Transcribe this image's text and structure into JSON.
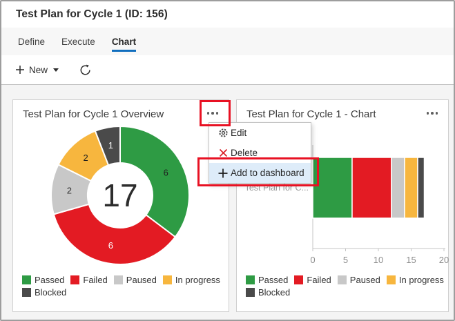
{
  "window": {
    "title": "Test Plan for Cycle 1 (ID: 156)"
  },
  "tabs": [
    {
      "label": "Define",
      "active": false
    },
    {
      "label": "Execute",
      "active": false
    },
    {
      "label": "Chart",
      "active": true
    }
  ],
  "toolbar": {
    "new_label": "New"
  },
  "menu": {
    "items": [
      {
        "label": "Edit",
        "icon": "gear-icon",
        "highlighted": false
      },
      {
        "label": "Delete",
        "icon": "delete-x-icon",
        "highlighted": false
      },
      {
        "label": "Add to dashboard",
        "icon": "plus-icon",
        "highlighted": true
      }
    ]
  },
  "colors": {
    "accent_blue": "#106ebe",
    "annotation_red": "#e81123",
    "menu_highlight": "#deecf9"
  },
  "chart_data": [
    {
      "type": "donut",
      "title": "Test Plan for Cycle 1 Overview",
      "categories": [
        "Passed",
        "Failed",
        "Paused",
        "In progress",
        "Blocked"
      ],
      "values": [
        6,
        6,
        2,
        2,
        1
      ],
      "colors": [
        "#2E9B44",
        "#E31B23",
        "#C8C8C8",
        "#F7B63E",
        "#4A4A4A"
      ],
      "label_colors": [
        "#1e1e1e",
        "#ffffff",
        "#333333",
        "#1e1e1e",
        "#ffffff"
      ],
      "center_total": "17",
      "start_angle": "top",
      "direction": "clockwise",
      "legend_position": "bottom"
    },
    {
      "type": "bar",
      "orientation": "horizontal",
      "stacked": true,
      "title": "Test Plan for Cycle 1 - Chart",
      "categories": [
        "Test Plan for C..."
      ],
      "series": [
        {
          "name": "Passed",
          "values": [
            6
          ],
          "color": "#2E9B44"
        },
        {
          "name": "Failed",
          "values": [
            6
          ],
          "color": "#E31B23"
        },
        {
          "name": "Paused",
          "values": [
            2
          ],
          "color": "#C8C8C8"
        },
        {
          "name": "In progress",
          "values": [
            2
          ],
          "color": "#F7B63E"
        },
        {
          "name": "Blocked",
          "values": [
            1
          ],
          "color": "#4A4A4A"
        }
      ],
      "xlim": [
        0,
        20
      ],
      "xticks": [
        0,
        5,
        10,
        15,
        20
      ],
      "grid": false,
      "legend_position": "bottom"
    }
  ]
}
